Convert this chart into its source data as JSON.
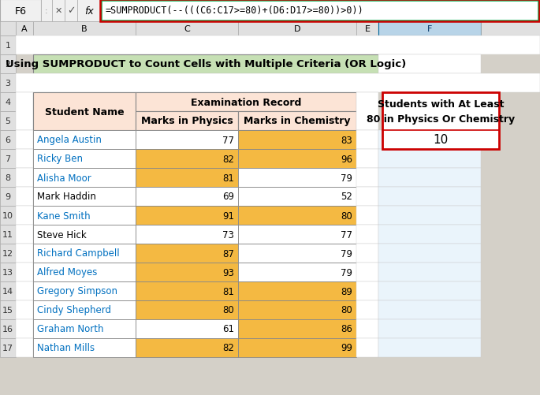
{
  "title": "Using SUMPRODUCT to Count Cells with Multiple Criteria (OR Logic)",
  "formula_bar_cell": "F6",
  "formula_bar_text": "=SUMPRODUCT(--(((C6:C17>=80)+(D6:D17>=80))>0))",
  "students": [
    "Angela Austin",
    "Ricky Ben",
    "Alisha Moor",
    "Mark Haddin",
    "Kane Smith",
    "Steve Hick",
    "Richard Campbell",
    "Alfred Moyes",
    "Gregory Simpson",
    "Cindy Shepherd",
    "Graham North",
    "Nathan Mills"
  ],
  "physics": [
    77,
    82,
    81,
    69,
    91,
    73,
    87,
    93,
    81,
    80,
    61,
    82
  ],
  "chemistry": [
    83,
    96,
    79,
    52,
    80,
    77,
    79,
    79,
    89,
    80,
    86,
    99
  ],
  "result": 10,
  "result_label_line1": "Students with At Least",
  "result_label_line2": "80 in Physics Or Chemistry",
  "title_bg": "#c6e0b4",
  "name_col_bg": "#fce4d6",
  "gold": "#f4b942",
  "white": "#ffffff",
  "highlight_threshold": 80,
  "result_box_border": "#cc0000",
  "fig_bg": "#d4d0c8",
  "formula_box_bg": "#ffffff",
  "formula_highlight_border": "#00b050",
  "col_header_bg": "#e0e0e0",
  "row_num_bg": "#e0e0e0",
  "name_highlight_color": "#0070c0",
  "name_normal_color": "#000000",
  "name_highlight_bg": "#ffffff"
}
